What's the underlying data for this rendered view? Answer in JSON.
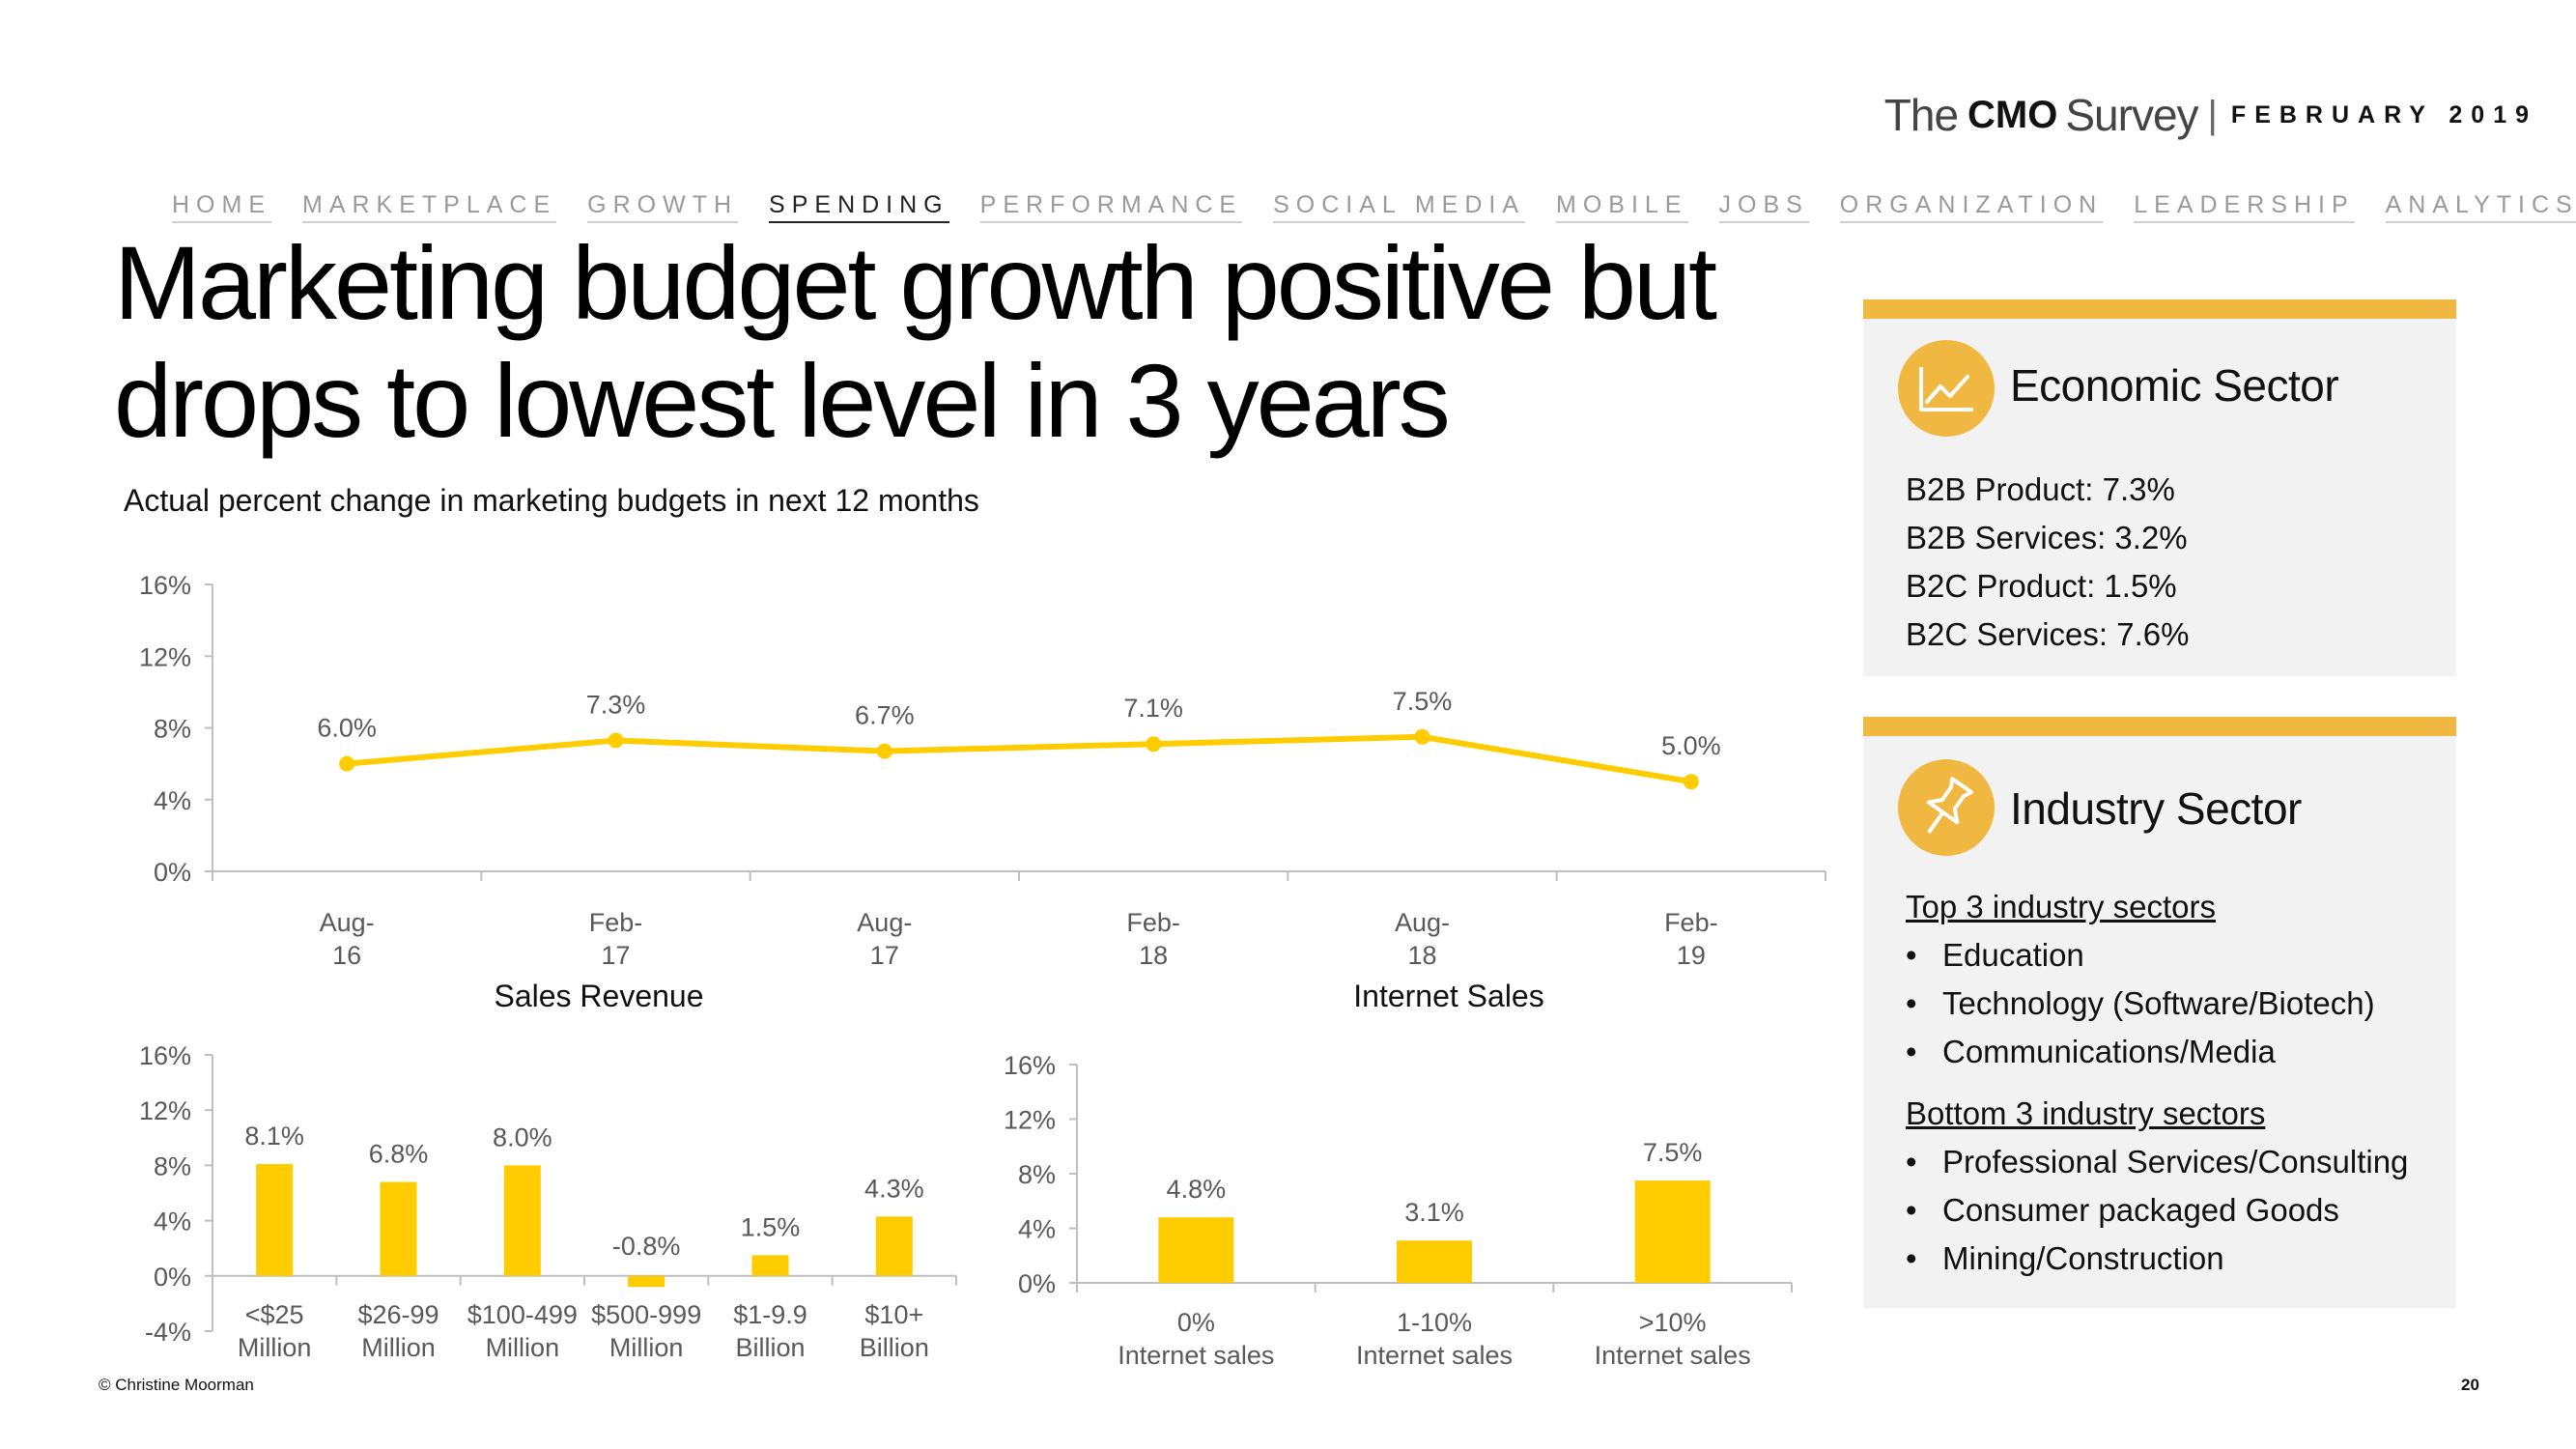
{
  "brand": {
    "the": "The",
    "cmo": "CMO",
    "survey": "Survey",
    "separator": "|",
    "date": "FEBRUARY 2019"
  },
  "nav": {
    "items": [
      "HOME",
      "MARKETPLACE",
      "GROWTH",
      "SPENDING",
      "PERFORMANCE",
      "SOCIAL MEDIA",
      "MOBILE",
      "JOBS",
      "ORGANIZATION",
      "LEADERSHIP",
      "ANALYTICS"
    ],
    "active": "SPENDING"
  },
  "title": "Marketing budget growth positive but drops to lowest level in 3 years",
  "subtitle": "Actual percent change in marketing budgets in next 12 months",
  "colors": {
    "accent": "#f0b841",
    "series": "#ffcc00",
    "axis": "#bfbfbf",
    "tick": "#595959"
  },
  "chart_data": [
    {
      "type": "line",
      "title": "",
      "categories": [
        [
          "Aug-",
          "16"
        ],
        [
          "Feb-",
          "17"
        ],
        [
          "Aug-",
          "17"
        ],
        [
          "Feb-",
          "18"
        ],
        [
          "Aug-",
          "18"
        ],
        [
          "Feb-",
          "19"
        ]
      ],
      "values": [
        6.0,
        7.3,
        6.7,
        7.1,
        7.5,
        5.0
      ],
      "labels": [
        "6.0%",
        "7.3%",
        "6.7%",
        "7.1%",
        "7.5%",
        "5.0%"
      ],
      "yticks": [
        "16%",
        "12%",
        "8%",
        "4%",
        "0%"
      ],
      "ylim": [
        0,
        16
      ]
    },
    {
      "type": "bar",
      "title": "Sales Revenue",
      "categories": [
        [
          "<$25",
          "Million"
        ],
        [
          "$26-99",
          "Million"
        ],
        [
          "$100-499",
          "Million"
        ],
        [
          "$500-999",
          "Million"
        ],
        [
          "$1-9.9",
          "Billion"
        ],
        [
          "$10+",
          "Billion"
        ]
      ],
      "values": [
        8.1,
        6.8,
        8.0,
        -0.8,
        1.5,
        4.3
      ],
      "labels": [
        "8.1%",
        "6.8%",
        "8.0%",
        "-0.8%",
        "1.5%",
        "4.3%"
      ],
      "yticks": [
        "16%",
        "12%",
        "8%",
        "4%",
        "0%",
        "-4%"
      ],
      "ylim": [
        -4,
        16
      ]
    },
    {
      "type": "bar",
      "title": "Internet Sales",
      "categories": [
        [
          "0%",
          "Internet sales"
        ],
        [
          "1-10%",
          "Internet sales"
        ],
        [
          ">10%",
          "Internet sales"
        ]
      ],
      "values": [
        4.8,
        3.1,
        7.5
      ],
      "labels": [
        "4.8%",
        "3.1%",
        "7.5%"
      ],
      "yticks": [
        "16%",
        "12%",
        "8%",
        "4%",
        "0%"
      ],
      "ylim": [
        0,
        16
      ]
    }
  ],
  "economic": {
    "heading": "Economic Sector",
    "icon": "line-chart-icon",
    "lines": [
      "B2B Product: 7.3%",
      "B2B Services: 3.2%",
      "B2C Product: 1.5%",
      "B2C Services: 7.6%"
    ]
  },
  "industry": {
    "heading": "Industry Sector",
    "icon": "pushpin-icon",
    "top_heading": "Top 3 industry sectors",
    "top": [
      "Education",
      "Technology (Software/Biotech)",
      "Communications/Media"
    ],
    "bottom_heading": "Bottom 3 industry sectors",
    "bottom": [
      "Professional Services/Consulting",
      "Consumer packaged Goods",
      "Mining/Construction"
    ],
    "bullet": "•"
  },
  "footer": {
    "copyright": "© Christine Moorman",
    "page": "20"
  }
}
